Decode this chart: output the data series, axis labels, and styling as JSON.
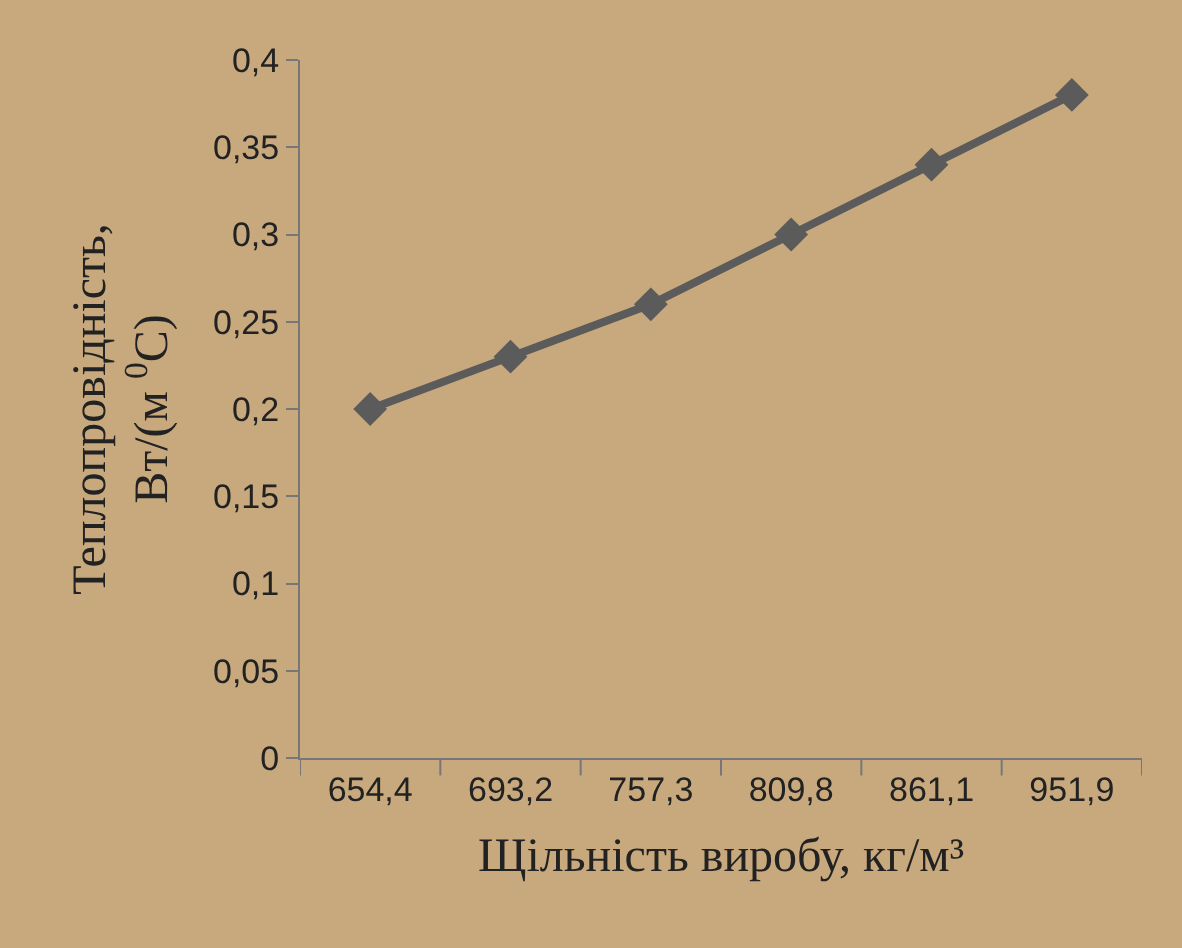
{
  "chart_data": {
    "type": "line",
    "xlabel": "Щільність виробу, кг/м³",
    "ylabel": "Теплопровідність,\nВт/(м $^{0}$С)",
    "categories": [
      "654,4",
      "693,2",
      "757,3",
      "809,8",
      "861,1",
      "951,9"
    ],
    "series": [
      {
        "color": "#5b5b5b",
        "values": [
          0.2,
          0.23,
          0.26,
          0.3,
          0.34,
          0.38
        ]
      }
    ],
    "ylim": [
      0,
      0.4
    ],
    "yticks": [
      {
        "value": 0,
        "label": "0"
      },
      {
        "value": 0.05,
        "label": "0,05"
      },
      {
        "value": 0.1,
        "label": "0,1"
      },
      {
        "value": 0.15,
        "label": "0,15"
      },
      {
        "value": 0.2,
        "label": "0,2"
      },
      {
        "value": 0.25,
        "label": "0,25"
      },
      {
        "value": 0.3,
        "label": "0,3"
      },
      {
        "value": 0.35,
        "label": "0,35"
      },
      {
        "value": 0.4,
        "label": "0,4"
      }
    ],
    "grid": false,
    "marker": "diamond",
    "line_style": "solid"
  }
}
